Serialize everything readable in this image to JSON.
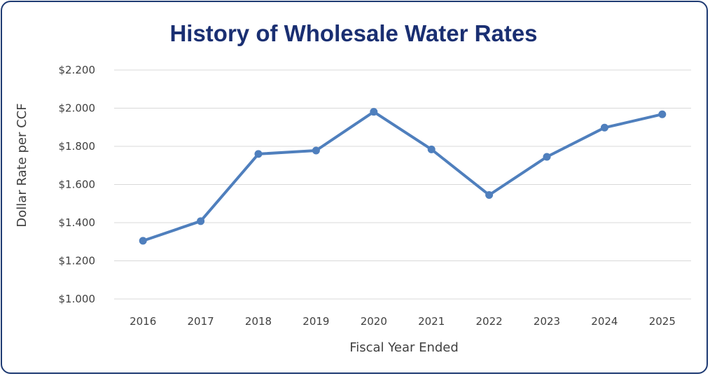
{
  "chart_data": {
    "type": "line",
    "title": "History of Wholesale Water Rates",
    "xlabel": "Fiscal Year Ended",
    "ylabel": "Dollar Rate per CCF",
    "categories": [
      "2016",
      "2017",
      "2018",
      "2019",
      "2020",
      "2021",
      "2022",
      "2023",
      "2024",
      "2025"
    ],
    "series": [
      {
        "values": [
          1.305,
          1.408,
          1.76,
          1.778,
          1.981,
          1.784,
          1.545,
          1.745,
          1.898,
          1.968
        ]
      }
    ],
    "y_ticks": [
      "$1.000",
      "$1.200",
      "$1.400",
      "$1.600",
      "$1.800",
      "$2.000",
      "$2.200"
    ],
    "ylim": [
      1.0,
      2.2
    ],
    "grid": true,
    "legend": "none",
    "colors": {
      "line": "#4f7fbd",
      "grid": "#d9d9d9",
      "frame": "#1f3b73",
      "title": "#1a2f72"
    }
  }
}
